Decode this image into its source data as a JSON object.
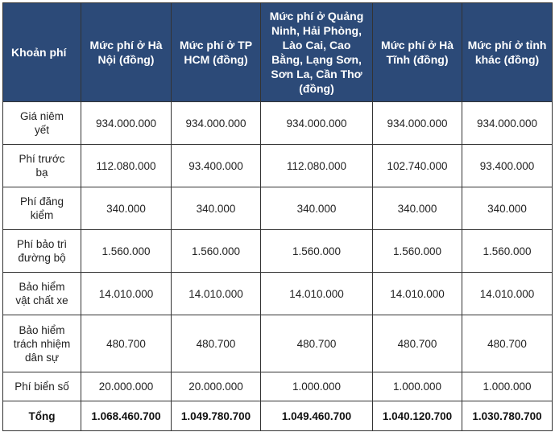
{
  "table": {
    "headers": [
      "Khoản phí",
      "Mức phí ở Hà Nội (đồng)",
      "Mức phí ở TP HCM (đồng)",
      "Mức phí ở Quảng Ninh, Hải Phòng, Lào Cai, Cao Bằng, Lạng Sơn, Sơn La, Cần Thơ (đồng)",
      "Mức phí ở Hà Tĩnh (đồng)",
      "Mức phí ở tỉnh khác (đồng)"
    ],
    "rows": [
      {
        "label": "Giá niêm yết",
        "values": [
          "934.000.000",
          "934.000.000",
          "934.000.000",
          "934.000.000",
          "934.000.000"
        ]
      },
      {
        "label": "Phí trước bạ",
        "values": [
          "112.080.000",
          "93.400.000",
          "112.080.000",
          "102.740.000",
          "93.400.000"
        ]
      },
      {
        "label": "Phí đăng kiểm",
        "values": [
          "340.000",
          "340.000",
          "340.000",
          "340.000",
          "340.000"
        ]
      },
      {
        "label": "Phí bảo trì đường bộ",
        "values": [
          "1.560.000",
          "1.560.000",
          "1.560.000",
          "1.560.000",
          "1.560.000"
        ]
      },
      {
        "label": "Bảo hiểm vật chất xe",
        "values": [
          "14.010.000",
          "14.010.000",
          "14.010.000",
          "14.010.000",
          "14.010.000"
        ]
      },
      {
        "label": "Bảo hiểm trách nhiệm dân sự",
        "values": [
          "480.700",
          "480.700",
          "480.700",
          "480.700",
          "480.700"
        ]
      },
      {
        "label": "Phí biển số",
        "values": [
          "20.000.000",
          "20.000.000",
          "1.000.000",
          "1.000.000",
          "1.000.000"
        ]
      },
      {
        "label": "Tổng",
        "values": [
          "1.068.460.700",
          "1.049.780.700",
          "1.049.460.700",
          "1.040.120.700",
          "1.030.780.700"
        ]
      }
    ]
  },
  "colors": {
    "header_bg": "#2c4a78",
    "header_text": "#ffffff",
    "border": "#333333"
  }
}
